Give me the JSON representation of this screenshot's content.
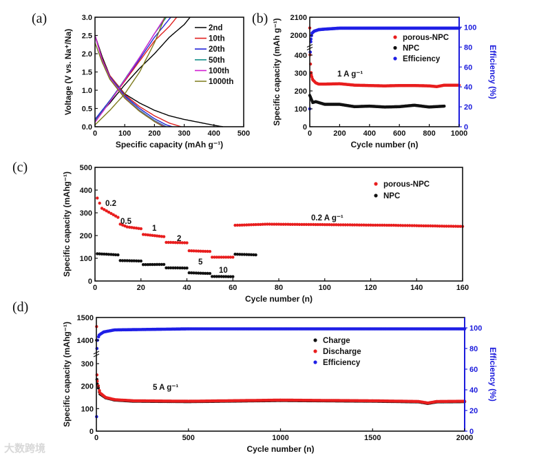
{
  "panel_labels": [
    "(a)",
    "(b)",
    "(c)",
    "(d)"
  ],
  "watermark": "大数跨境",
  "chart_data": [
    {
      "type": "line",
      "xlabel": "Specific capacity (mAh g⁻¹)",
      "ylabel": "Voltage (V vs. Na⁺/Na)",
      "xlim": [
        0,
        500
      ],
      "ylim": [
        0,
        3.0
      ],
      "xticks": [
        "0",
        "100",
        "200",
        "300",
        "400",
        "500"
      ],
      "yticks": [
        "0.0",
        "0.5",
        "1.0",
        "1.5",
        "2.0",
        "2.5",
        "3.0"
      ],
      "legend": "top-right",
      "series": [
        {
          "name": "2nd",
          "color": "#000000",
          "discharge": [
            [
              0,
              2.5
            ],
            [
              25,
              1.9
            ],
            [
              50,
              1.4
            ],
            [
              100,
              0.9
            ],
            [
              150,
              0.65
            ],
            [
              200,
              0.45
            ],
            [
              250,
              0.3
            ],
            [
              300,
              0.2
            ],
            [
              350,
              0.12
            ],
            [
              400,
              0.04
            ],
            [
              430,
              0
            ]
          ],
          "charge": [
            [
              0,
              0.2
            ],
            [
              50,
              0.65
            ],
            [
              100,
              1.15
            ],
            [
              150,
              1.6
            ],
            [
              200,
              2.0
            ],
            [
              250,
              2.45
            ],
            [
              300,
              2.8
            ],
            [
              320,
              3.0
            ]
          ]
        },
        {
          "name": "10th",
          "color": "#e0201f",
          "discharge": [
            [
              0,
              2.5
            ],
            [
              25,
              1.85
            ],
            [
              50,
              1.4
            ],
            [
              100,
              0.88
            ],
            [
              150,
              0.55
            ],
            [
              200,
              0.3
            ],
            [
              250,
              0.1
            ],
            [
              290,
              0
            ]
          ],
          "charge": [
            [
              0,
              0.2
            ],
            [
              50,
              0.7
            ],
            [
              100,
              1.25
            ],
            [
              150,
              1.8
            ],
            [
              200,
              2.35
            ],
            [
              250,
              2.75
            ],
            [
              275,
              3.0
            ]
          ]
        },
        {
          "name": "20th",
          "color": "#2323d8",
          "discharge": [
            [
              0,
              2.5
            ],
            [
              25,
              1.82
            ],
            [
              50,
              1.37
            ],
            [
              100,
              0.85
            ],
            [
              150,
              0.5
            ],
            [
              200,
              0.22
            ],
            [
              240,
              0.05
            ],
            [
              260,
              0
            ]
          ],
          "charge": [
            [
              0,
              0.2
            ],
            [
              50,
              0.72
            ],
            [
              100,
              1.28
            ],
            [
              150,
              1.85
            ],
            [
              200,
              2.45
            ],
            [
              255,
              3.0
            ]
          ]
        },
        {
          "name": "50th",
          "color": "#16908a",
          "discharge": [
            [
              0,
              2.5
            ],
            [
              25,
              1.8
            ],
            [
              50,
              1.35
            ],
            [
              100,
              0.82
            ],
            [
              150,
              0.45
            ],
            [
              200,
              0.17
            ],
            [
              240,
              0
            ]
          ],
          "charge": [
            [
              0,
              0.15
            ],
            [
              50,
              0.7
            ],
            [
              100,
              1.3
            ],
            [
              150,
              1.9
            ],
            [
              200,
              2.55
            ],
            [
              240,
              3.0
            ]
          ]
        },
        {
          "name": "100th",
          "color": "#d21ed2",
          "discharge": [
            [
              0,
              2.5
            ],
            [
              25,
              1.8
            ],
            [
              50,
              1.34
            ],
            [
              100,
              0.8
            ],
            [
              150,
              0.43
            ],
            [
              200,
              0.15
            ],
            [
              235,
              0
            ]
          ],
          "charge": [
            [
              0,
              0.12
            ],
            [
              50,
              0.68
            ],
            [
              100,
              1.28
            ],
            [
              150,
              1.9
            ],
            [
              200,
              2.55
            ],
            [
              235,
              3.0
            ]
          ]
        },
        {
          "name": "1000th",
          "color": "#7d7a1a",
          "discharge": [
            [
              0,
              2.3
            ],
            [
              25,
              1.75
            ],
            [
              50,
              1.3
            ],
            [
              100,
              0.78
            ],
            [
              150,
              0.42
            ],
            [
              200,
              0.14
            ],
            [
              230,
              0
            ]
          ],
          "charge": [
            [
              0,
              0.05
            ],
            [
              50,
              0.45
            ],
            [
              100,
              0.9
            ],
            [
              150,
              1.5
            ],
            [
              200,
              2.3
            ],
            [
              235,
              3.0
            ]
          ]
        }
      ]
    },
    {
      "type": "scatter",
      "xlabel": "Cycle number (n)",
      "ylabel": "Specific capacity (mAh g⁻¹)",
      "ylabel_right": "Efficiency (%)",
      "xlim": [
        0,
        1000
      ],
      "ylim": [
        0,
        2100
      ],
      "y_break": [
        400,
        2000
      ],
      "ylim_right": [
        0,
        110
      ],
      "xticks": [
        "0",
        "200",
        "400",
        "600",
        "800",
        "1000"
      ],
      "yticks": [
        "0",
        "100",
        "200",
        "300",
        "400",
        "2000",
        "2100"
      ],
      "yticks_right": [
        "0",
        "20",
        "40",
        "60",
        "80",
        "100"
      ],
      "annotation": "1 A g⁻¹",
      "legend": "top-right",
      "series": [
        {
          "name": "porous-NPC",
          "color": "#e81e1e",
          "axis": "left",
          "points": [
            [
              0,
              2040
            ],
            [
              2,
              420
            ],
            [
              5,
              350
            ],
            [
              10,
              290
            ],
            [
              20,
              262
            ],
            [
              40,
              245
            ],
            [
              60,
              238
            ],
            [
              100,
              238
            ],
            [
              200,
              240
            ],
            [
              300,
              232
            ],
            [
              400,
              230
            ],
            [
              500,
              228
            ],
            [
              600,
              230
            ],
            [
              700,
              230
            ],
            [
              800,
              228
            ],
            [
              850,
              224
            ],
            [
              900,
              232
            ],
            [
              1000,
              232
            ]
          ]
        },
        {
          "name": "NPC",
          "color": "#111111",
          "axis": "left",
          "points": [
            [
              0,
              175
            ],
            [
              20,
              135
            ],
            [
              40,
              140
            ],
            [
              100,
              125
            ],
            [
              200,
              125
            ],
            [
              300,
              112
            ],
            [
              400,
              115
            ],
            [
              500,
              110
            ],
            [
              600,
              112
            ],
            [
              700,
              120
            ],
            [
              800,
              110
            ],
            [
              900,
              115
            ]
          ]
        },
        {
          "name": "Efficiency",
          "color": "#1f1fe6",
          "axis": "right",
          "points": [
            [
              0,
              18
            ],
            [
              3,
              75
            ],
            [
              8,
              88
            ],
            [
              15,
              94
            ],
            [
              30,
              96
            ],
            [
              60,
              97.5
            ],
            [
              100,
              98
            ],
            [
              200,
              99
            ],
            [
              1000,
              99
            ]
          ]
        }
      ]
    },
    {
      "type": "scatter",
      "xlabel": "Cycle number (n)",
      "ylabel": "Specific capacity (mAhg⁻¹)",
      "xlim": [
        0,
        160
      ],
      "ylim": [
        0,
        500
      ],
      "xticks": [
        "0",
        "20",
        "40",
        "60",
        "80",
        "100",
        "120",
        "140",
        "160"
      ],
      "yticks": [
        "0",
        "100",
        "200",
        "300",
        "400",
        "500"
      ],
      "rate_labels": [
        "0.2",
        "0.5",
        "1",
        "2",
        "5",
        "10",
        "0.2 A g⁻¹"
      ],
      "legend": "top-right",
      "series": [
        {
          "name": "porous-NPC",
          "color": "#e81e1e",
          "segments": [
            [
              [
                1,
                365
              ],
              [
                3,
                320
              ],
              [
                10,
                280
              ]
            ],
            [
              [
                11,
                250
              ],
              [
                14,
                238
              ],
              [
                20,
                230
              ]
            ],
            [
              [
                21,
                205
              ],
              [
                30,
                195
              ]
            ],
            [
              [
                31,
                170
              ],
              [
                40,
                168
              ]
            ],
            [
              [
                41,
                133
              ],
              [
                50,
                130
              ]
            ],
            [
              [
                51,
                105
              ],
              [
                60,
                105
              ]
            ],
            [
              [
                61,
                245
              ],
              [
                75,
                250
              ],
              [
                100,
                248
              ],
              [
                130,
                245
              ],
              [
                160,
                240
              ]
            ]
          ]
        },
        {
          "name": "NPC",
          "color": "#111111",
          "segments": [
            [
              [
                1,
                120
              ],
              [
                10,
                115
              ]
            ],
            [
              [
                11,
                90
              ],
              [
                20,
                88
              ]
            ],
            [
              [
                21,
                72
              ],
              [
                30,
                73
              ]
            ],
            [
              [
                31,
                58
              ],
              [
                40,
                57
              ]
            ],
            [
              [
                41,
                36
              ],
              [
                50,
                33
              ]
            ],
            [
              [
                51,
                20
              ],
              [
                60,
                19
              ]
            ],
            [
              [
                61,
                118
              ],
              [
                70,
                115
              ]
            ]
          ]
        }
      ]
    },
    {
      "type": "scatter",
      "xlabel": "Cycle number (n)",
      "ylabel": "Specific capacity (mAhg⁻¹)",
      "ylabel_right": "Efficiency (%)",
      "xlim": [
        0,
        2000
      ],
      "ylim": [
        0,
        1500
      ],
      "y_break": [
        300,
        1400
      ],
      "ylim_right": [
        0,
        110
      ],
      "xticks": [
        "0",
        "500",
        "1000",
        "1500",
        "2000"
      ],
      "yticks": [
        "0",
        "100",
        "200",
        "300",
        "1400",
        "1500"
      ],
      "yticks_right": [
        "0",
        "20",
        "40",
        "60",
        "80",
        "100"
      ],
      "annotation": "5 A g⁻¹",
      "legend": "top-right",
      "series": [
        {
          "name": "Charge",
          "color": "#111111",
          "axis": "left",
          "points": [
            [
              1,
              1400
            ],
            [
              3,
              230
            ],
            [
              5,
              210
            ],
            [
              20,
              165
            ],
            [
              50,
              148
            ],
            [
              100,
              138
            ],
            [
              200,
              133
            ],
            [
              500,
              131
            ],
            [
              1000,
              136
            ],
            [
              1500,
              133
            ],
            [
              1750,
              130
            ],
            [
              1800,
              123
            ],
            [
              1850,
              130
            ],
            [
              2000,
              131
            ]
          ]
        },
        {
          "name": "Discharge",
          "color": "#e81e1e",
          "axis": "left",
          "points": [
            [
              1,
              1460
            ],
            [
              3,
              250
            ],
            [
              5,
              222
            ],
            [
              20,
              170
            ],
            [
              50,
              150
            ],
            [
              100,
              140
            ],
            [
              200,
              135
            ],
            [
              500,
              133
            ],
            [
              1000,
              138
            ],
            [
              1500,
              135
            ],
            [
              1750,
              132
            ],
            [
              1800,
              125
            ],
            [
              1850,
              132
            ],
            [
              2000,
              133
            ]
          ]
        },
        {
          "name": "Efficiency",
          "color": "#1f1fe6",
          "axis": "right",
          "points": [
            [
              1,
              14
            ],
            [
              3,
              80
            ],
            [
              6,
              88
            ],
            [
              15,
              93
            ],
            [
              40,
              96
            ],
            [
              100,
              98
            ],
            [
              500,
              99
            ],
            [
              2000,
              99
            ]
          ]
        }
      ]
    }
  ]
}
